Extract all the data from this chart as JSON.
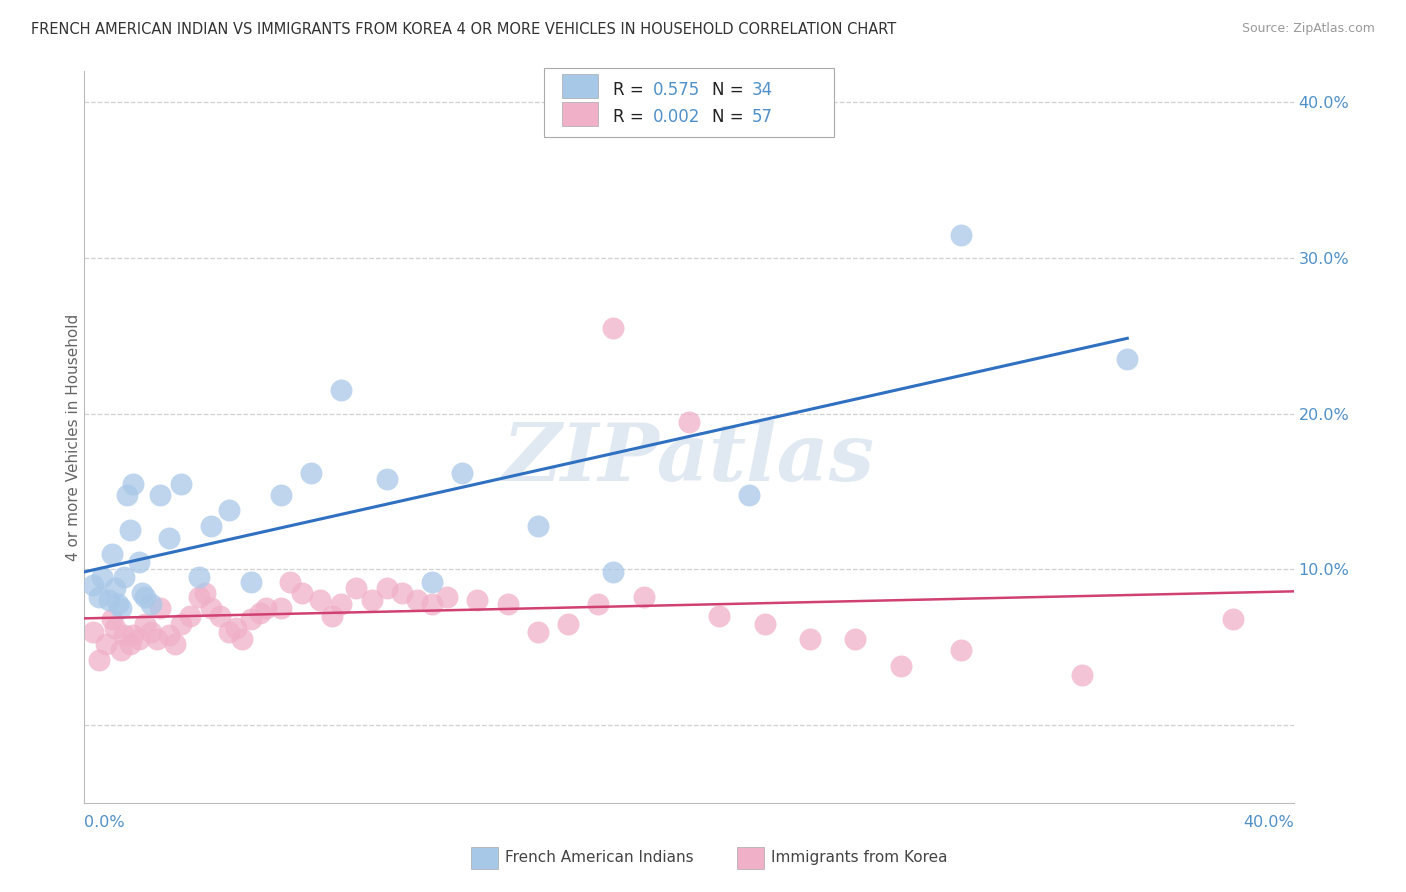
{
  "title": "FRENCH AMERICAN INDIAN VS IMMIGRANTS FROM KOREA 4 OR MORE VEHICLES IN HOUSEHOLD CORRELATION CHART",
  "source": "Source: ZipAtlas.com",
  "ylabel": "4 or more Vehicles in Household",
  "xmin": 0.0,
  "xmax": 0.4,
  "ymin": -0.05,
  "ymax": 0.42,
  "legend_r_blue": "0.575",
  "legend_n_blue": "34",
  "legend_r_pink": "0.002",
  "legend_n_pink": "57",
  "blue_scatter_x": [
    0.003,
    0.005,
    0.006,
    0.008,
    0.009,
    0.01,
    0.011,
    0.012,
    0.013,
    0.014,
    0.015,
    0.016,
    0.018,
    0.019,
    0.02,
    0.022,
    0.025,
    0.028,
    0.032,
    0.038,
    0.042,
    0.048,
    0.055,
    0.065,
    0.075,
    0.085,
    0.1,
    0.115,
    0.125,
    0.15,
    0.175,
    0.22,
    0.29,
    0.345
  ],
  "blue_scatter_y": [
    0.09,
    0.082,
    0.095,
    0.08,
    0.11,
    0.088,
    0.078,
    0.075,
    0.095,
    0.148,
    0.125,
    0.155,
    0.105,
    0.085,
    0.082,
    0.078,
    0.148,
    0.12,
    0.155,
    0.095,
    0.128,
    0.138,
    0.092,
    0.148,
    0.162,
    0.215,
    0.158,
    0.092,
    0.162,
    0.128,
    0.098,
    0.148,
    0.315,
    0.235
  ],
  "pink_scatter_x": [
    0.003,
    0.005,
    0.007,
    0.009,
    0.01,
    0.012,
    0.013,
    0.015,
    0.016,
    0.018,
    0.02,
    0.022,
    0.024,
    0.025,
    0.028,
    0.03,
    0.032,
    0.035,
    0.038,
    0.04,
    0.042,
    0.045,
    0.048,
    0.05,
    0.052,
    0.055,
    0.058,
    0.06,
    0.065,
    0.068,
    0.072,
    0.078,
    0.082,
    0.085,
    0.09,
    0.095,
    0.1,
    0.105,
    0.11,
    0.115,
    0.12,
    0.13,
    0.14,
    0.15,
    0.16,
    0.17,
    0.175,
    0.185,
    0.2,
    0.21,
    0.225,
    0.24,
    0.255,
    0.27,
    0.29,
    0.33,
    0.38
  ],
  "pink_scatter_y": [
    0.06,
    0.042,
    0.052,
    0.068,
    0.062,
    0.048,
    0.058,
    0.052,
    0.058,
    0.055,
    0.065,
    0.06,
    0.055,
    0.075,
    0.058,
    0.052,
    0.065,
    0.07,
    0.082,
    0.085,
    0.075,
    0.07,
    0.06,
    0.062,
    0.055,
    0.068,
    0.072,
    0.075,
    0.075,
    0.092,
    0.085,
    0.08,
    0.07,
    0.078,
    0.088,
    0.08,
    0.088,
    0.085,
    0.08,
    0.078,
    0.082,
    0.08,
    0.078,
    0.06,
    0.065,
    0.078,
    0.255,
    0.082,
    0.195,
    0.07,
    0.065,
    0.055,
    0.055,
    0.038,
    0.048,
    0.032,
    0.068
  ],
  "blue_color": "#A8C8E8",
  "pink_color": "#F0B0C8",
  "blue_line_color": "#3070C0",
  "pink_line_color": "#D04070",
  "watermark_text": "ZIPatlas",
  "watermark_color": "#C8D8E8",
  "background_color": "#FFFFFF",
  "grid_color": "#D0D0D0",
  "ytick_color": "#5090C8",
  "xtick_corner_color": "#5090C8"
}
